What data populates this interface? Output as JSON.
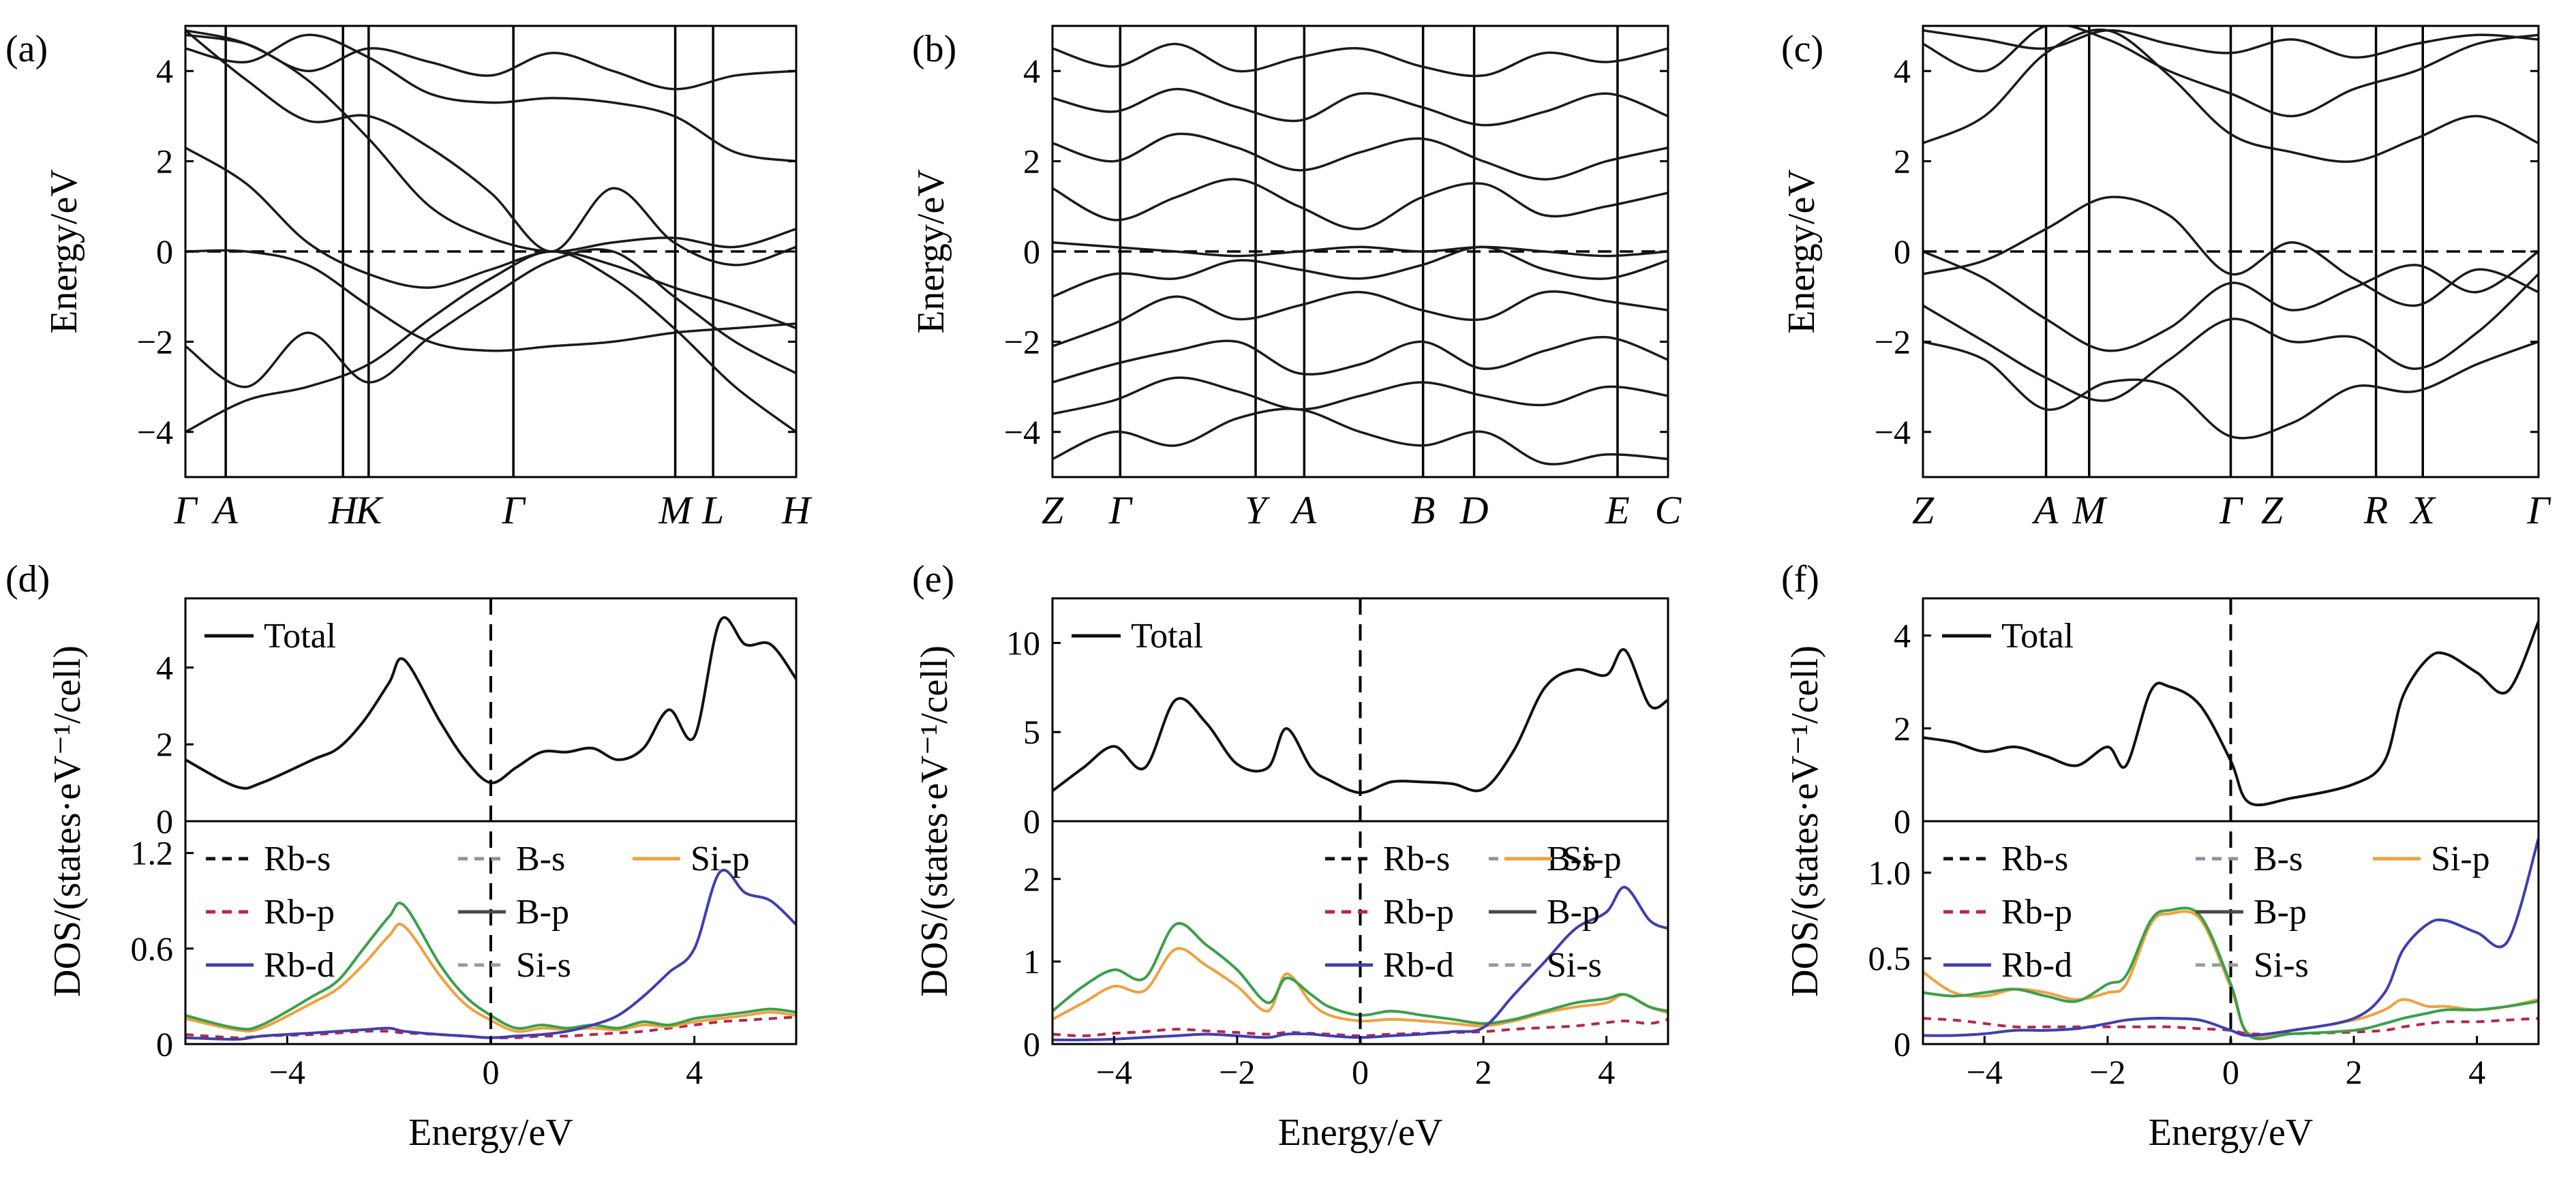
{
  "colors": {
    "band": "#1a1a1a",
    "total": "#111111",
    "rb_s": "#111111",
    "rb_p": "#b8254a",
    "rb_d": "#3f3fb0",
    "b_s": "#9a8aa0",
    "b_p": "#4a4a4a",
    "si_s": "#9a9a9a",
    "si_p": "#f0a040",
    "green": "#3aa04a",
    "fermi": "#000000"
  },
  "chart_data": [
    {
      "panel": "(a)",
      "type": "line",
      "ylabel": "Energy/eV",
      "ylim": [
        -5,
        5
      ],
      "yticks": [
        -4,
        -2,
        0,
        2,
        4
      ],
      "kpath": [
        "Γ",
        "A",
        "H",
        "K",
        "Γ",
        "M",
        "L",
        "H"
      ],
      "kpath_x": [
        0,
        0.066,
        0.258,
        0.3,
        0.537,
        0.802,
        0.864,
        1.0
      ],
      "bands": [
        [
          -2.1,
          -3.0,
          -1.8,
          -2.9,
          -1.9,
          -1.0,
          -0.2,
          0.0,
          -1.0,
          -2.0,
          -2.7
        ],
        [
          -4.0,
          -3.3,
          -3.0,
          -2.5,
          -1.5,
          -0.6,
          0.0,
          -0.6,
          -1.7,
          -3.0,
          -4.0
        ],
        [
          0.0,
          0.0,
          -0.3,
          -1.2,
          -2.0,
          -2.2,
          -2.1,
          -2.0,
          -1.8,
          -1.7,
          -1.6
        ],
        [
          2.3,
          1.5,
          0.2,
          -0.5,
          -0.8,
          -0.4,
          0.0,
          -0.3,
          -0.8,
          -1.2,
          -1.7
        ],
        [
          4.9,
          3.8,
          2.9,
          3.0,
          2.3,
          1.3,
          0.0,
          1.4,
          0.2,
          -0.3,
          0.1
        ],
        [
          4.9,
          4.6,
          3.8,
          2.5,
          1.0,
          0.3,
          0.0,
          0.2,
          0.3,
          0.1,
          0.5
        ],
        [
          4.5,
          4.2,
          4.8,
          4.3,
          3.5,
          3.3,
          3.4,
          3.3,
          3.0,
          2.2,
          2.0
        ],
        [
          4.8,
          4.6,
          4.0,
          4.5,
          4.2,
          3.9,
          4.4,
          4.0,
          3.6,
          3.9,
          4.0
        ]
      ]
    },
    {
      "panel": "(b)",
      "type": "line",
      "ylabel": "Energy/eV",
      "ylim": [
        -5,
        5
      ],
      "yticks": [
        -4,
        -2,
        0,
        2,
        4
      ],
      "kpath": [
        "Z",
        "Γ",
        "Y",
        "A",
        "B",
        "D",
        "E",
        "C"
      ],
      "kpath_x": [
        0,
        0.11,
        0.33,
        0.409,
        0.602,
        0.685,
        0.918,
        1.0
      ],
      "bands": [
        [
          -4.6,
          -4.0,
          -4.3,
          -3.7,
          -3.5,
          -4.0,
          -4.3,
          -4.0,
          -4.7,
          -4.5,
          -4.6
        ],
        [
          -3.6,
          -3.3,
          -2.8,
          -3.1,
          -3.5,
          -3.2,
          -2.9,
          -3.2,
          -3.4,
          -3.0,
          -3.2
        ],
        [
          -2.9,
          -2.5,
          -2.2,
          -2.0,
          -2.7,
          -2.5,
          -2.0,
          -2.6,
          -2.2,
          -1.9,
          -2.4
        ],
        [
          -2.1,
          -1.6,
          -1.0,
          -1.5,
          -1.2,
          -0.9,
          -1.3,
          -1.5,
          -0.9,
          -1.1,
          -1.3
        ],
        [
          -1.0,
          -0.5,
          -0.6,
          -0.2,
          -0.4,
          -0.6,
          -0.3,
          0.1,
          -0.4,
          -0.6,
          -0.2
        ],
        [
          0.2,
          0.1,
          0.0,
          -0.1,
          0.0,
          0.1,
          0.0,
          0.1,
          0.0,
          -0.1,
          0.0
        ],
        [
          1.4,
          0.7,
          1.2,
          1.6,
          1.0,
          0.5,
          1.2,
          1.5,
          0.8,
          1.0,
          1.3
        ],
        [
          2.4,
          2.0,
          2.6,
          2.3,
          1.8,
          2.2,
          2.5,
          2.0,
          1.6,
          2.0,
          2.3
        ],
        [
          3.4,
          3.1,
          3.6,
          3.2,
          2.9,
          3.5,
          3.2,
          2.8,
          3.1,
          3.5,
          3.0
        ],
        [
          4.5,
          4.1,
          4.6,
          4.0,
          4.3,
          4.5,
          4.1,
          3.9,
          4.4,
          4.2,
          4.5
        ]
      ]
    },
    {
      "panel": "(c)",
      "type": "line",
      "ylabel": "Energy/eV",
      "ylim": [
        -5,
        5
      ],
      "yticks": [
        -4,
        -2,
        0,
        2,
        4
      ],
      "kpath": [
        "Z",
        "A",
        "M",
        "Γ",
        "Z",
        "R",
        "X",
        "Γ"
      ],
      "kpath_x": [
        0,
        0.2,
        0.27,
        0.5,
        0.567,
        0.736,
        0.812,
        1.0
      ],
      "bands": [
        [
          -2.0,
          -2.4,
          -3.5,
          -2.9,
          -3.0,
          -4.1,
          -3.8,
          -3.0,
          -3.1,
          -2.5,
          -2.0
        ],
        [
          -1.2,
          -2.0,
          -2.8,
          -3.3,
          -2.4,
          -1.5,
          -2.0,
          -1.9,
          -2.6,
          -1.8,
          -0.5
        ],
        [
          0.0,
          -0.6,
          -1.5,
          -2.2,
          -1.7,
          -0.7,
          -1.3,
          -0.8,
          -0.3,
          -0.9,
          0.0
        ],
        [
          -0.5,
          -0.2,
          0.5,
          1.2,
          0.8,
          -0.5,
          0.2,
          -0.6,
          -1.2,
          -0.4,
          -0.9
        ],
        [
          2.4,
          3.0,
          4.4,
          4.9,
          3.9,
          2.6,
          2.2,
          2.0,
          2.5,
          3.0,
          2.4
        ],
        [
          4.6,
          4.0,
          5.0,
          4.7,
          4.0,
          3.5,
          3.0,
          3.6,
          4.0,
          4.6,
          4.8
        ],
        [
          4.9,
          4.7,
          4.5,
          4.9,
          4.6,
          4.4,
          4.7,
          4.3,
          4.6,
          4.8,
          4.7
        ]
      ]
    },
    {
      "panel": "(d)",
      "type": "line",
      "ylabel": "DOS/(states·eV⁻¹/cell)",
      "xlabel": "Energy/eV",
      "xlim": [
        -6,
        6
      ],
      "xticks": [
        -4,
        0,
        4
      ],
      "top": {
        "ylim": [
          0,
          5.8
        ],
        "yticks": [
          0,
          2,
          4
        ],
        "legend": [
          "Total"
        ],
        "x": [
          -6,
          -5,
          -4.5,
          -3.5,
          -3,
          -2.5,
          -2,
          -1.7,
          -1,
          -0.5,
          0,
          0.5,
          1,
          1.5,
          2,
          2.5,
          3,
          3.5,
          4,
          4.5,
          5,
          5.5,
          6
        ],
        "total": [
          1.6,
          0.9,
          1.0,
          1.6,
          1.9,
          2.6,
          3.6,
          4.2,
          2.6,
          1.6,
          1.0,
          1.4,
          1.8,
          1.8,
          1.9,
          1.6,
          1.9,
          2.9,
          2.2,
          5.2,
          4.6,
          4.6,
          3.7
        ]
      },
      "bottom": {
        "ylim": [
          0,
          1.4
        ],
        "yticks": [
          0,
          0.6,
          1.2
        ],
        "legend": [
          "Rb-s",
          "Rb-p",
          "Rb-d",
          "B-s",
          "B-p",
          "Si-s",
          "Si-p"
        ],
        "x": [
          -6,
          -5,
          -4.5,
          -3.5,
          -3,
          -2.5,
          -2,
          -1.7,
          -1,
          -0.5,
          0,
          0.5,
          1,
          1.5,
          2,
          2.5,
          3,
          3.5,
          4,
          4.5,
          5,
          5.5,
          6
        ],
        "green": [
          0.18,
          0.1,
          0.12,
          0.3,
          0.4,
          0.6,
          0.8,
          0.87,
          0.5,
          0.3,
          0.18,
          0.1,
          0.12,
          0.1,
          0.12,
          0.1,
          0.14,
          0.12,
          0.16,
          0.18,
          0.2,
          0.22,
          0.2
        ],
        "si_p": [
          0.16,
          0.09,
          0.1,
          0.26,
          0.35,
          0.5,
          0.68,
          0.74,
          0.43,
          0.25,
          0.15,
          0.08,
          0.1,
          0.09,
          0.1,
          0.09,
          0.12,
          0.11,
          0.14,
          0.16,
          0.18,
          0.2,
          0.18
        ],
        "rb_d": [
          0.04,
          0.03,
          0.05,
          0.07,
          0.08,
          0.09,
          0.1,
          0.08,
          0.06,
          0.05,
          0.04,
          0.05,
          0.06,
          0.08,
          0.12,
          0.18,
          0.3,
          0.45,
          0.6,
          1.08,
          0.95,
          0.9,
          0.75
        ],
        "rb_p": [
          0.06,
          0.04,
          0.05,
          0.06,
          0.07,
          0.08,
          0.08,
          0.07,
          0.06,
          0.05,
          0.04,
          0.04,
          0.05,
          0.05,
          0.06,
          0.07,
          0.08,
          0.1,
          0.12,
          0.14,
          0.15,
          0.16,
          0.17
        ]
      }
    },
    {
      "panel": "(e)",
      "type": "line",
      "ylabel": "DOS/(states·eV⁻¹/cell)",
      "xlabel": "Energy/eV",
      "xlim": [
        -5,
        5
      ],
      "xticks": [
        -4,
        -2,
        0,
        2,
        4
      ],
      "top": {
        "ylim": [
          0,
          12.5
        ],
        "yticks": [
          0,
          5,
          10
        ],
        "legend": [
          "Total"
        ],
        "x": [
          -5,
          -4.5,
          -4,
          -3.5,
          -3,
          -2.5,
          -2,
          -1.5,
          -1.2,
          -0.8,
          -0.5,
          0,
          0.5,
          1,
          1.5,
          2,
          2.5,
          3,
          3.5,
          4,
          4.3,
          4.7,
          5
        ],
        "total": [
          1.7,
          3.0,
          4.2,
          3.0,
          6.8,
          5.5,
          3.2,
          3.0,
          5.2,
          3.0,
          2.3,
          1.6,
          2.2,
          2.2,
          2.1,
          1.8,
          4.0,
          7.5,
          8.5,
          8.2,
          9.6,
          6.5,
          6.8
        ]
      },
      "bottom": {
        "ylim": [
          0,
          2.7
        ],
        "yticks": [
          0,
          1,
          2
        ],
        "legend": [
          "Rb-s",
          "Rb-p",
          "Rb-d",
          "B-s",
          "B-p",
          "Si-s",
          "Si-p"
        ],
        "x": [
          -5,
          -4.5,
          -4,
          -3.5,
          -3,
          -2.5,
          -2,
          -1.5,
          -1.2,
          -0.8,
          -0.5,
          0,
          0.5,
          1,
          1.5,
          2,
          2.5,
          3,
          3.5,
          4,
          4.3,
          4.7,
          5
        ],
        "green": [
          0.4,
          0.7,
          0.9,
          0.8,
          1.45,
          1.2,
          0.9,
          0.5,
          0.8,
          0.6,
          0.45,
          0.35,
          0.4,
          0.35,
          0.3,
          0.25,
          0.3,
          0.4,
          0.5,
          0.55,
          0.6,
          0.45,
          0.4
        ],
        "si_p": [
          0.3,
          0.5,
          0.7,
          0.65,
          1.15,
          0.95,
          0.7,
          0.4,
          0.85,
          0.5,
          0.35,
          0.28,
          0.3,
          0.28,
          0.25,
          0.22,
          0.28,
          0.38,
          0.45,
          0.5,
          0.6,
          0.45,
          0.38
        ],
        "rb_d": [
          0.05,
          0.05,
          0.06,
          0.08,
          0.1,
          0.12,
          0.1,
          0.08,
          0.12,
          0.12,
          0.1,
          0.08,
          0.1,
          0.12,
          0.15,
          0.2,
          0.6,
          1.0,
          1.4,
          1.6,
          1.9,
          1.5,
          1.4
        ],
        "rb_p": [
          0.12,
          0.1,
          0.13,
          0.15,
          0.18,
          0.16,
          0.14,
          0.12,
          0.14,
          0.13,
          0.12,
          0.1,
          0.12,
          0.13,
          0.14,
          0.15,
          0.18,
          0.2,
          0.22,
          0.26,
          0.28,
          0.25,
          0.3
        ]
      }
    },
    {
      "panel": "(f)",
      "type": "line",
      "ylabel": "DOS/(states·eV⁻¹/cell)",
      "xlabel": "Energy/eV",
      "xlim": [
        -5,
        5
      ],
      "xticks": [
        -4,
        -2,
        0,
        2,
        4
      ],
      "top": {
        "ylim": [
          0,
          4.8
        ],
        "yticks": [
          0,
          2,
          4
        ],
        "legend": [
          "Total"
        ],
        "x": [
          -5,
          -4.5,
          -4,
          -3.5,
          -3,
          -2.5,
          -2,
          -1.7,
          -1.3,
          -1,
          -0.5,
          0,
          0.3,
          1,
          2,
          2.5,
          2.8,
          3.2,
          3.5,
          4,
          4.5,
          5
        ],
        "total": [
          1.8,
          1.7,
          1.5,
          1.6,
          1.4,
          1.2,
          1.6,
          1.2,
          2.8,
          2.9,
          2.5,
          1.3,
          0.4,
          0.5,
          0.8,
          1.3,
          2.7,
          3.5,
          3.6,
          3.2,
          2.8,
          4.3
        ]
      },
      "bottom": {
        "ylim": [
          0,
          1.3
        ],
        "yticks": [
          0,
          0.5,
          1.0
        ],
        "legend": [
          "Rb-s",
          "Rb-p",
          "Rb-d",
          "B-s",
          "B-p",
          "Si-s",
          "Si-p"
        ],
        "x": [
          -5,
          -4.5,
          -4,
          -3.5,
          -3,
          -2.5,
          -2,
          -1.7,
          -1.3,
          -1,
          -0.5,
          0,
          0.3,
          1,
          2,
          2.5,
          2.8,
          3.2,
          3.5,
          4,
          4.5,
          5
        ],
        "green": [
          0.3,
          0.28,
          0.3,
          0.32,
          0.28,
          0.25,
          0.35,
          0.4,
          0.72,
          0.78,
          0.75,
          0.35,
          0.05,
          0.06,
          0.08,
          0.12,
          0.15,
          0.18,
          0.2,
          0.2,
          0.22,
          0.25
        ],
        "si_p": [
          0.42,
          0.3,
          0.28,
          0.32,
          0.3,
          0.26,
          0.3,
          0.35,
          0.7,
          0.76,
          0.73,
          0.33,
          0.06,
          0.08,
          0.14,
          0.2,
          0.26,
          0.22,
          0.22,
          0.2,
          0.22,
          0.26
        ],
        "rb_d": [
          0.05,
          0.05,
          0.06,
          0.08,
          0.08,
          0.09,
          0.12,
          0.14,
          0.15,
          0.15,
          0.14,
          0.08,
          0.05,
          0.08,
          0.15,
          0.3,
          0.55,
          0.7,
          0.72,
          0.65,
          0.6,
          1.2
        ],
        "rb_p": [
          0.15,
          0.14,
          0.12,
          0.1,
          0.1,
          0.1,
          0.1,
          0.1,
          0.1,
          0.1,
          0.09,
          0.08,
          0.06,
          0.06,
          0.07,
          0.08,
          0.1,
          0.12,
          0.13,
          0.13,
          0.14,
          0.15
        ]
      }
    }
  ]
}
